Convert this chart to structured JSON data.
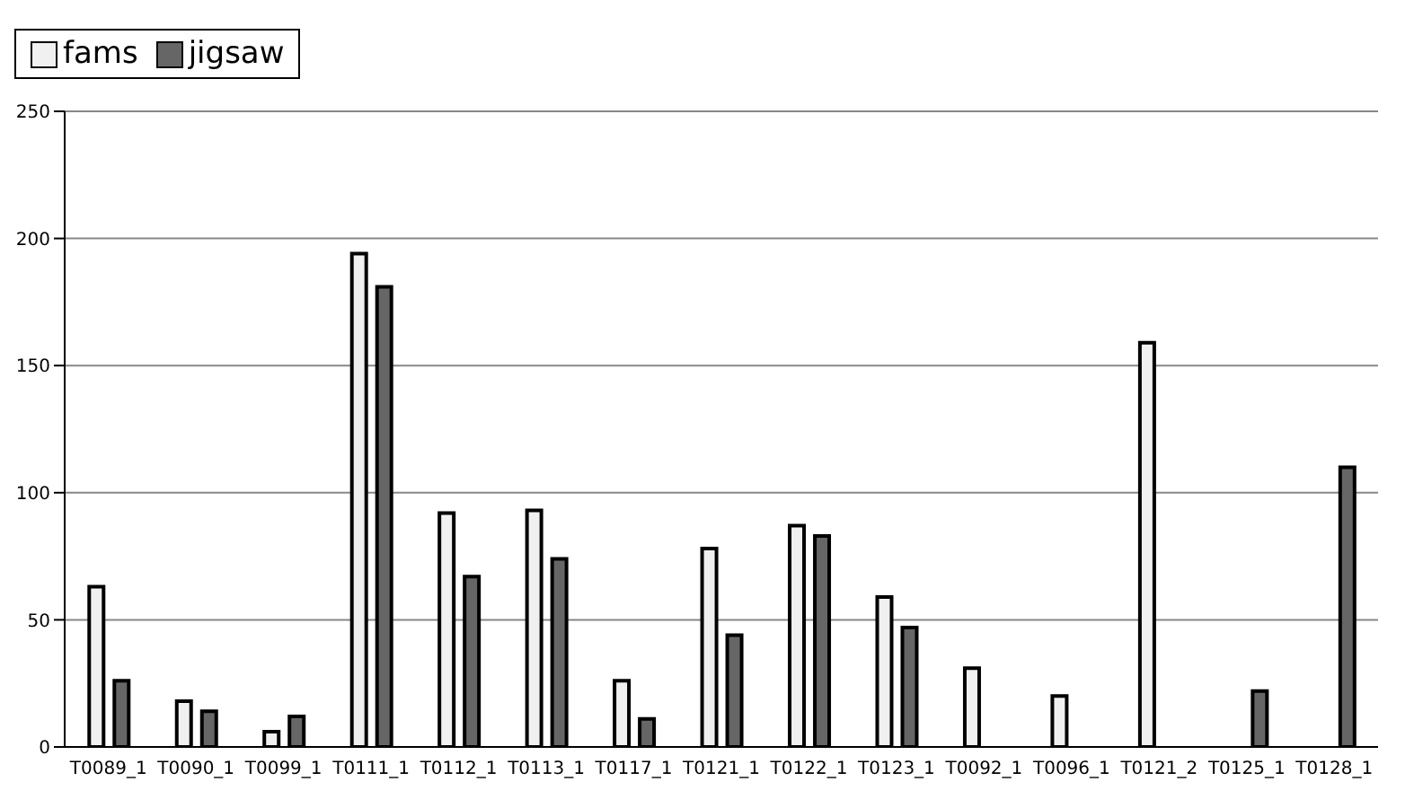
{
  "chart_data": {
    "type": "bar",
    "categories": [
      "T0089_1",
      "T0090_1",
      "T0099_1",
      "T0111_1",
      "T0112_1",
      "T0113_1",
      "T0117_1",
      "T0121_1",
      "T0122_1",
      "T0123_1",
      "T0092_1",
      "T0096_1",
      "T0121_2",
      "T0125_1",
      "T0128_1"
    ],
    "series": [
      {
        "name": "fams",
        "color": "#f0f0f0",
        "values": [
          63,
          18,
          6,
          194,
          92,
          93,
          26,
          78,
          87,
          59,
          31,
          20,
          159,
          null,
          null
        ]
      },
      {
        "name": "jigsaw",
        "color": "#666666",
        "values": [
          26,
          14,
          12,
          181,
          67,
          74,
          11,
          44,
          83,
          47,
          null,
          null,
          null,
          22,
          110
        ]
      }
    ],
    "ylim": [
      0,
      250
    ],
    "yticks": [
      0,
      50,
      100,
      150,
      200,
      250
    ],
    "grid": "y",
    "legend": "top"
  }
}
